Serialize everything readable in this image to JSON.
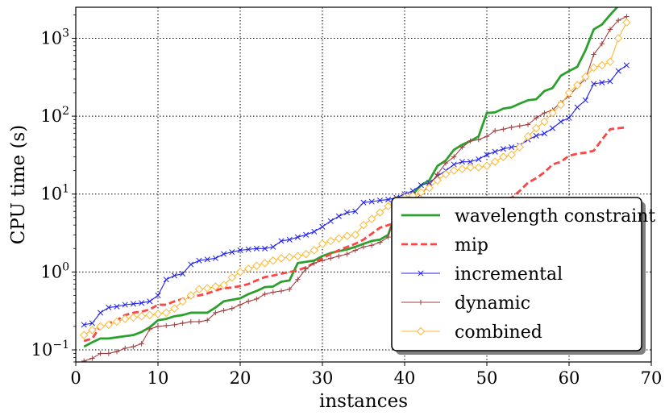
{
  "chart_data": {
    "type": "line",
    "xlabel": "instances",
    "ylabel": "CPU time (s)",
    "xlim": [
      0,
      70
    ],
    "ylim": [
      0.07,
      2500
    ],
    "y_scale": "log",
    "grid": true,
    "grid_style": "dotted",
    "legend_position": "lower-right",
    "x_ticks": [
      0,
      10,
      20,
      30,
      40,
      50,
      60,
      70
    ],
    "x_tick_labels": [
      "0",
      "10",
      "20",
      "30",
      "40",
      "50",
      "60",
      "70"
    ],
    "y_ticks": [
      0.1,
      1,
      10,
      100,
      1000
    ],
    "y_tick_labels": [
      "10",
      "10",
      "10",
      "10",
      "10"
    ],
    "y_tick_exponents": [
      "−1",
      "0",
      "1",
      "2",
      "3"
    ],
    "series": [
      {
        "name": "wavelength constraint",
        "color": "#2ca02c",
        "dash": "solid",
        "marker": "none",
        "x": [
          1,
          2,
          3,
          4,
          5,
          6,
          7,
          8,
          9,
          10,
          11,
          12,
          13,
          14,
          15,
          16,
          17,
          18,
          19,
          20,
          21,
          22,
          23,
          24,
          25,
          26,
          27,
          28,
          29,
          30,
          31,
          32,
          33,
          34,
          35,
          36,
          37,
          38,
          39,
          40,
          41,
          42,
          43,
          44,
          45,
          46,
          47,
          48,
          49,
          50,
          51,
          52,
          53,
          54,
          55,
          56,
          57,
          58,
          59,
          60,
          61,
          62,
          63,
          64,
          65,
          66,
          67
        ],
        "values": [
          0.11,
          0.125,
          0.14,
          0.14,
          0.145,
          0.15,
          0.155,
          0.17,
          0.195,
          0.24,
          0.25,
          0.27,
          0.28,
          0.3,
          0.3,
          0.3,
          0.35,
          0.42,
          0.44,
          0.46,
          0.52,
          0.57,
          0.64,
          0.65,
          0.75,
          0.78,
          1.3,
          1.35,
          1.4,
          1.6,
          1.75,
          1.85,
          1.95,
          2.1,
          2.3,
          2.5,
          2.6,
          3.0,
          6.0,
          8.0,
          10.0,
          13.0,
          15.0,
          23.0,
          27.0,
          37.0,
          43.0,
          48.0,
          55.0,
          110.0,
          112.0,
          125.0,
          130.0,
          145.0,
          160.0,
          165.0,
          210.0,
          230.0,
          330.0,
          380.0,
          430.0,
          700.0,
          1300.0,
          1500.0,
          2000.0,
          2600.0,
          3200.0
        ]
      },
      {
        "name": "mip",
        "color": "#ff4444",
        "dash": "dashed",
        "marker": "none",
        "x": [
          1,
          2,
          3,
          4,
          5,
          6,
          7,
          8,
          9,
          10,
          11,
          12,
          13,
          14,
          15,
          16,
          17,
          18,
          19,
          20,
          21,
          22,
          23,
          24,
          25,
          26,
          27,
          28,
          29,
          30,
          31,
          32,
          33,
          34,
          35,
          36,
          37,
          38,
          39,
          40,
          41,
          42,
          43,
          44,
          45,
          46,
          47,
          48,
          49,
          50,
          51,
          52,
          53,
          54,
          55,
          56,
          57,
          58,
          59,
          60,
          61,
          62,
          63,
          64,
          65,
          66,
          67
        ],
        "values": [
          0.13,
          0.14,
          0.2,
          0.22,
          0.24,
          0.28,
          0.3,
          0.31,
          0.33,
          0.38,
          0.38,
          0.42,
          0.45,
          0.48,
          0.5,
          0.53,
          0.58,
          0.62,
          0.63,
          0.66,
          0.7,
          0.78,
          0.86,
          0.9,
          0.95,
          1.0,
          1.05,
          1.15,
          1.3,
          1.5,
          1.7,
          1.9,
          2.1,
          2.3,
          2.6,
          3.1,
          3.7,
          4.0,
          4.3,
          4.6,
          4.8,
          5.0,
          5.2,
          5.4,
          5.6,
          5.8,
          6.0,
          6.3,
          6.8,
          7.5,
          8.0,
          8.5,
          9.0,
          11.0,
          14.0,
          16.0,
          19.0,
          24.0,
          26.0,
          31.0,
          33.0,
          34.0,
          36.0,
          50.0,
          68.0,
          70.0,
          72.0
        ]
      },
      {
        "name": "incremental",
        "color": "#2020ee",
        "dash": "solid",
        "marker": "x",
        "x": [
          1,
          2,
          3,
          4,
          5,
          6,
          7,
          8,
          9,
          10,
          11,
          12,
          13,
          14,
          15,
          16,
          17,
          18,
          19,
          20,
          21,
          22,
          23,
          24,
          25,
          26,
          27,
          28,
          29,
          30,
          31,
          32,
          33,
          34,
          35,
          36,
          37,
          38,
          39,
          40,
          41,
          42,
          43,
          44,
          45,
          46,
          47,
          48,
          49,
          50,
          51,
          52,
          53,
          54,
          55,
          56,
          57,
          58,
          59,
          60,
          61,
          62,
          63,
          64,
          65,
          66,
          67
        ],
        "values": [
          0.21,
          0.22,
          0.3,
          0.35,
          0.36,
          0.38,
          0.39,
          0.4,
          0.42,
          0.5,
          0.8,
          0.9,
          0.95,
          1.25,
          1.4,
          1.45,
          1.5,
          1.7,
          1.8,
          1.9,
          1.95,
          2.0,
          2.0,
          2.1,
          2.5,
          2.6,
          2.8,
          3.0,
          3.3,
          3.8,
          4.5,
          5.2,
          5.8,
          6.0,
          7.8,
          8.0,
          8.3,
          8.5,
          9.0,
          10.0,
          11.0,
          13.0,
          14.0,
          17.0,
          20.0,
          24.0,
          26.0,
          26.0,
          28.0,
          32.0,
          35.0,
          38.0,
          40.0,
          42.0,
          50.0,
          56.0,
          60.0,
          70.0,
          85.0,
          95.0,
          130.0,
          160.0,
          260.0,
          270.0,
          280.0,
          380.0,
          450.0
        ]
      },
      {
        "name": "dynamic",
        "color": "#a04040",
        "dash": "solid",
        "marker": "+",
        "x": [
          1,
          2,
          3,
          4,
          5,
          6,
          7,
          8,
          9,
          10,
          11,
          12,
          13,
          14,
          15,
          16,
          17,
          18,
          19,
          20,
          21,
          22,
          23,
          24,
          25,
          26,
          27,
          28,
          29,
          30,
          31,
          32,
          33,
          34,
          35,
          36,
          37,
          38,
          39,
          40,
          41,
          42,
          43,
          44,
          45,
          46,
          47,
          48,
          49,
          50,
          51,
          52,
          53,
          54,
          55,
          56,
          57,
          58,
          59,
          60,
          61,
          62,
          63,
          64,
          65,
          66,
          67
        ],
        "values": [
          0.072,
          0.078,
          0.09,
          0.09,
          0.095,
          0.105,
          0.11,
          0.12,
          0.185,
          0.2,
          0.205,
          0.21,
          0.22,
          0.23,
          0.23,
          0.24,
          0.3,
          0.32,
          0.34,
          0.38,
          0.42,
          0.45,
          0.52,
          0.55,
          0.57,
          0.6,
          0.8,
          1.1,
          1.3,
          1.4,
          1.5,
          1.6,
          1.7,
          1.9,
          2.1,
          2.2,
          2.4,
          2.8,
          6.5,
          7.5,
          8.0,
          10.0,
          13.0,
          18.0,
          25.0,
          30.0,
          40.0,
          48.0,
          50.0,
          55.0,
          65.0,
          68.0,
          72.0,
          75.0,
          78.0,
          95.0,
          110.0,
          120.0,
          150.0,
          180.0,
          240.0,
          300.0,
          620.0,
          850.0,
          1300.0,
          1700.0,
          1900.0
        ]
      },
      {
        "name": "combined",
        "color": "#ffb732",
        "dash": "solid",
        "marker": "diamond",
        "x": [
          1,
          2,
          3,
          4,
          5,
          6,
          7,
          8,
          9,
          10,
          11,
          12,
          13,
          14,
          15,
          16,
          17,
          18,
          19,
          20,
          21,
          22,
          23,
          24,
          25,
          26,
          27,
          28,
          29,
          30,
          31,
          32,
          33,
          34,
          35,
          36,
          37,
          38,
          39,
          40,
          41,
          42,
          43,
          44,
          45,
          46,
          47,
          48,
          49,
          50,
          51,
          52,
          53,
          54,
          55,
          56,
          57,
          58,
          59,
          60,
          61,
          62,
          63,
          64,
          65,
          66,
          67
        ],
        "values": [
          0.155,
          0.18,
          0.2,
          0.21,
          0.23,
          0.25,
          0.26,
          0.27,
          0.28,
          0.29,
          0.3,
          0.34,
          0.42,
          0.5,
          0.6,
          0.62,
          0.65,
          0.68,
          0.85,
          1.0,
          1.1,
          1.2,
          1.3,
          1.4,
          1.5,
          1.55,
          1.6,
          1.7,
          1.9,
          2.3,
          2.5,
          2.7,
          2.9,
          3.0,
          4.0,
          4.8,
          5.8,
          7.0,
          8.5,
          9.0,
          9.5,
          10.5,
          12.0,
          15.0,
          18.0,
          20.0,
          21.0,
          22.0,
          22.0,
          23.0,
          26.0,
          30.0,
          32.0,
          40.0,
          55.0,
          70.0,
          85.0,
          110.0,
          140.0,
          200.0,
          250.0,
          320.0,
          420.0,
          450.0,
          500.0,
          1000.0,
          1600.0
        ]
      }
    ]
  }
}
